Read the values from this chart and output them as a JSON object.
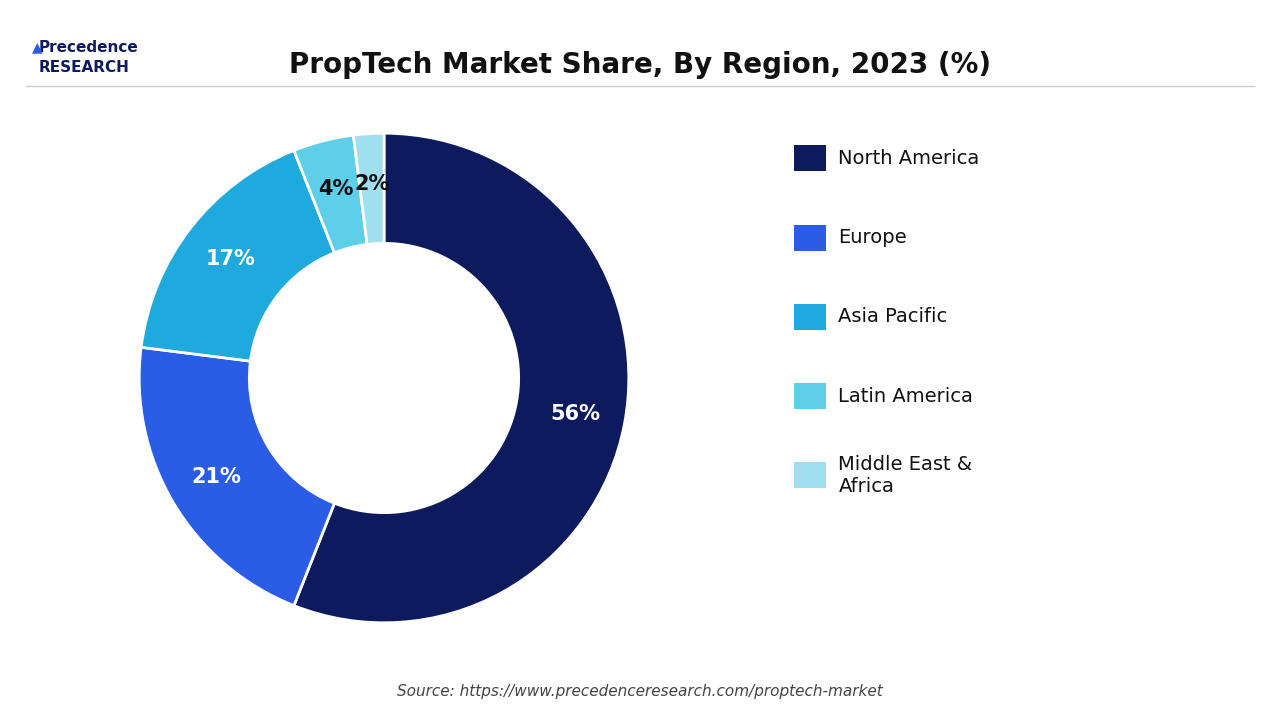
{
  "title": "PropTech Market Share, By Region, 2023 (%)",
  "values": [
    56,
    21,
    17,
    4,
    2
  ],
  "labels": [
    "North America",
    "Europe",
    "Asia Pacific",
    "Latin America",
    "Middle East &\nAfrica"
  ],
  "colors": [
    "#0d1b5e",
    "#2b5ce6",
    "#1eaadc",
    "#5dcfe8",
    "#a0dff0"
  ],
  "autopct_labels": [
    "56%",
    "21%",
    "17%",
    "4%",
    "2%"
  ],
  "source_text": "Source: https://www.precedenceresearch.com/proptech-market",
  "background_color": "#ffffff",
  "wedge_edge_color": "#ffffff",
  "title_fontsize": 20,
  "label_fontsize": 15,
  "legend_fontsize": 14,
  "source_fontsize": 11,
  "startangle": 90,
  "donut_width": 0.45
}
